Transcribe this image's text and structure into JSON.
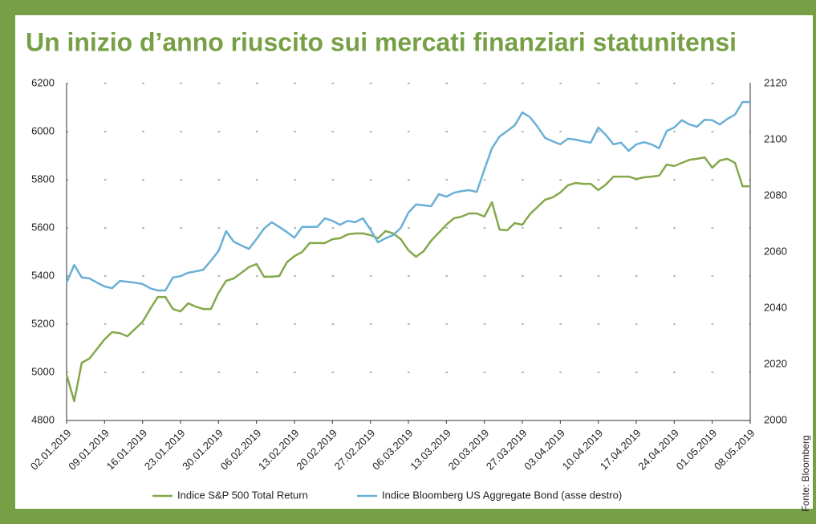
{
  "chart_data": {
    "type": "line",
    "title": "Un inizio d’anno riuscito sui mercati finanziari statunitensi",
    "source": "Fonte: Bloomberg",
    "categories": [
      "02.01.2019",
      null,
      null,
      null,
      null,
      "09.01.2019",
      null,
      null,
      null,
      null,
      "16.01.2019",
      null,
      null,
      null,
      null,
      "23.01.2019",
      null,
      null,
      null,
      null,
      "30.01.2019",
      null,
      null,
      null,
      null,
      "06.02.2019",
      null,
      null,
      null,
      null,
      "13.02.2019",
      null,
      null,
      null,
      null,
      "20.02.2019",
      null,
      null,
      null,
      null,
      "27.02.2019",
      null,
      null,
      null,
      null,
      "06.03.2019",
      null,
      null,
      null,
      null,
      "13.03.2019",
      null,
      null,
      null,
      null,
      "20.03.2019",
      null,
      null,
      null,
      null,
      "27.03.2019",
      null,
      null,
      null,
      null,
      "03.04.2019",
      null,
      null,
      null,
      null,
      "10.04.2019",
      null,
      null,
      null,
      null,
      "17.04.2019",
      null,
      null,
      null,
      null,
      "24.04.2019",
      null,
      null,
      null,
      null,
      "01.05.2019",
      null,
      null,
      null,
      null,
      "08.05.2019"
    ],
    "series": [
      {
        "name": "Indice S&P 500 Total Return",
        "color": "#84a84c",
        "axis": "y",
        "values": [
          4990,
          4880,
          5040,
          5057,
          5097,
          5137,
          5167,
          5163,
          5150,
          5180,
          5210,
          5263,
          5313,
          5313,
          5263,
          5253,
          5287,
          5273,
          5263,
          5263,
          5330,
          5380,
          5390,
          5413,
          5437,
          5450,
          5397,
          5397,
          5400,
          5457,
          5483,
          5500,
          5537,
          5537,
          5537,
          5553,
          5557,
          5573,
          5577,
          5577,
          5570,
          5557,
          5587,
          5577,
          5553,
          5507,
          5480,
          5503,
          5547,
          5580,
          5613,
          5640,
          5647,
          5660,
          5660,
          5647,
          5707,
          5593,
          5590,
          5620,
          5613,
          5657,
          5687,
          5717,
          5727,
          5747,
          5777,
          5787,
          5783,
          5783,
          5757,
          5780,
          5813,
          5813,
          5813,
          5803,
          5810,
          5813,
          5817,
          5863,
          5857,
          5870,
          5883,
          5887,
          5893,
          5850,
          5880,
          5887,
          5870,
          5773,
          5773
        ]
      },
      {
        "name": "Indice Bloomberg US Aggregate Bond (asse destro)",
        "color": "#6aafd6",
        "axis": "y2",
        "values": [
          2049.1,
          2055.4,
          2050.9,
          2050.6,
          2049.1,
          2047.7,
          2047.1,
          2049.7,
          2049.4,
          2049.1,
          2048.6,
          2047.1,
          2046.3,
          2046.3,
          2050.9,
          2051.4,
          2052.6,
          2053.1,
          2053.7,
          2056.9,
          2060.3,
          2067.4,
          2063.7,
          2062.3,
          2061.1,
          2064.6,
          2068.3,
          2070.6,
          2068.9,
          2067.1,
          2065.1,
          2068.9,
          2068.9,
          2068.9,
          2072,
          2071.1,
          2069.7,
          2071.1,
          2070.6,
          2072,
          2068,
          2063.4,
          2064.9,
          2066,
          2068.6,
          2074,
          2076.9,
          2076.6,
          2076.3,
          2080.6,
          2079.7,
          2081.1,
          2081.7,
          2082,
          2081.4,
          2089.4,
          2096.9,
          2101.1,
          2103.1,
          2105.1,
          2109.7,
          2108,
          2104.6,
          2100.6,
          2099.4,
          2098.3,
          2100.3,
          2100,
          2099.4,
          2098.9,
          2104.3,
          2101.7,
          2098.3,
          2098.9,
          2096,
          2098.3,
          2099.1,
          2098.3,
          2096.9,
          2103.1,
          2104.3,
          2106.9,
          2105.4,
          2104.6,
          2107.1,
          2106.9,
          2105.4,
          2107.4,
          2108.9,
          2113.4,
          2113.4
        ]
      }
    ],
    "ylim": [
      4800,
      6200
    ],
    "yticks": [
      4800,
      5000,
      5200,
      5400,
      5600,
      5800,
      6000,
      6200
    ],
    "y2lim": [
      2000,
      2120
    ],
    "y2ticks": [
      2000,
      2020,
      2040,
      2060,
      2080,
      2100,
      2120
    ],
    "grid": true,
    "legend": "bottom"
  }
}
